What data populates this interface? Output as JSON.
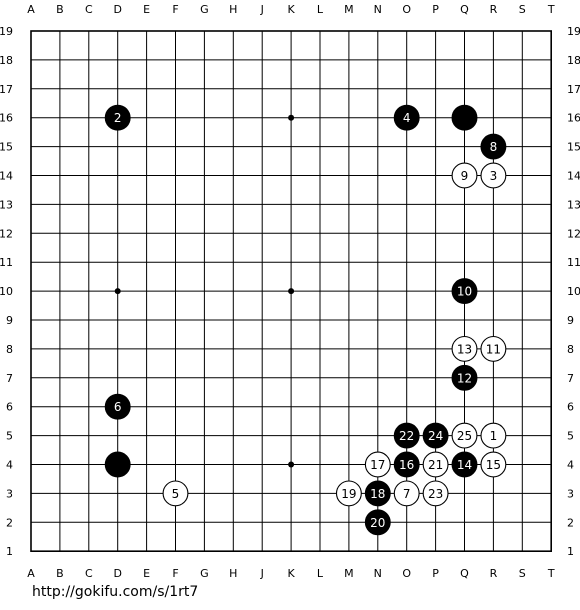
{
  "board": {
    "size": 19,
    "columns": [
      "A",
      "B",
      "C",
      "D",
      "E",
      "F",
      "G",
      "H",
      "J",
      "K",
      "L",
      "M",
      "N",
      "O",
      "P",
      "Q",
      "R",
      "S",
      "T"
    ],
    "rows": [
      "19",
      "18",
      "17",
      "16",
      "15",
      "14",
      "13",
      "12",
      "11",
      "10",
      "9",
      "8",
      "7",
      "6",
      "5",
      "4",
      "3",
      "2",
      "1"
    ],
    "hoshi": [
      "D16",
      "K16",
      "Q16",
      "D10",
      "K10",
      "Q10",
      "D4",
      "K4",
      "Q4"
    ],
    "stones": [
      {
        "pos": "Q16",
        "color": "black",
        "label": ""
      },
      {
        "pos": "D4",
        "color": "black",
        "label": ""
      },
      {
        "pos": "R5",
        "color": "white",
        "label": "1"
      },
      {
        "pos": "D16",
        "color": "black",
        "label": "2"
      },
      {
        "pos": "R14",
        "color": "white",
        "label": "3"
      },
      {
        "pos": "O16",
        "color": "black",
        "label": "4"
      },
      {
        "pos": "F3",
        "color": "white",
        "label": "5"
      },
      {
        "pos": "D6",
        "color": "black",
        "label": "6"
      },
      {
        "pos": "O3",
        "color": "white",
        "label": "7"
      },
      {
        "pos": "R15",
        "color": "black",
        "label": "8"
      },
      {
        "pos": "Q14",
        "color": "white",
        "label": "9"
      },
      {
        "pos": "Q10",
        "color": "black",
        "label": "10"
      },
      {
        "pos": "R8",
        "color": "white",
        "label": "11"
      },
      {
        "pos": "Q7",
        "color": "black",
        "label": "12"
      },
      {
        "pos": "Q8",
        "color": "white",
        "label": "13"
      },
      {
        "pos": "Q4",
        "color": "black",
        "label": "14"
      },
      {
        "pos": "R4",
        "color": "white",
        "label": "15"
      },
      {
        "pos": "O4",
        "color": "black",
        "label": "16"
      },
      {
        "pos": "N4",
        "color": "white",
        "label": "17"
      },
      {
        "pos": "N3",
        "color": "black",
        "label": "18"
      },
      {
        "pos": "M3",
        "color": "white",
        "label": "19"
      },
      {
        "pos": "N2",
        "color": "black",
        "label": "20"
      },
      {
        "pos": "P4",
        "color": "white",
        "label": "21"
      },
      {
        "pos": "O5",
        "color": "black",
        "label": "22"
      },
      {
        "pos": "P3",
        "color": "white",
        "label": "23"
      },
      {
        "pos": "P5",
        "color": "black",
        "label": "24"
      },
      {
        "pos": "Q5",
        "color": "white",
        "label": "25"
      }
    ]
  },
  "footer": {
    "url": "http://gokifu.com/s/1rt7"
  }
}
